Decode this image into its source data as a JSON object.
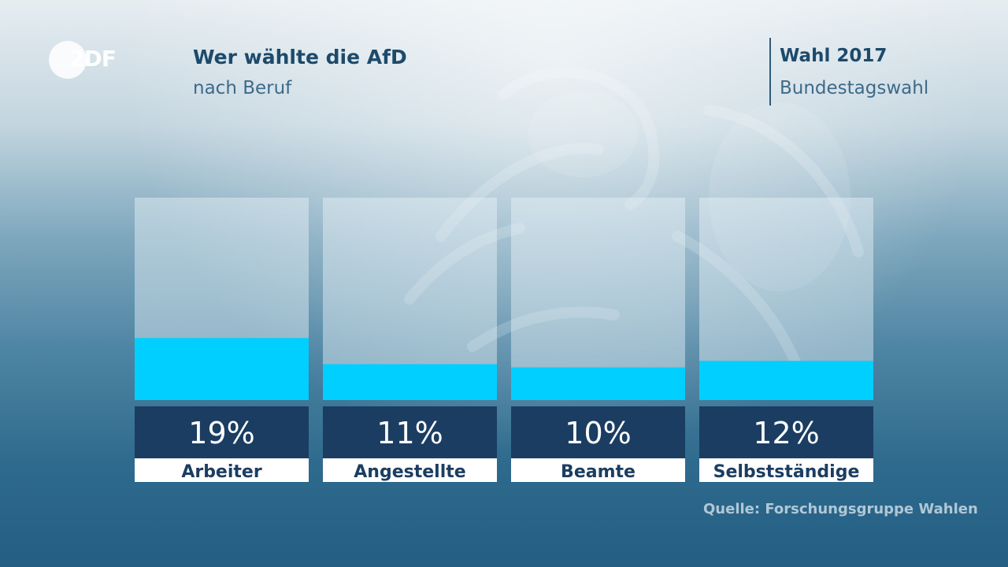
{
  "brand": {
    "logo_text": "2DF"
  },
  "header": {
    "title": "Wer wählte die AfD",
    "subtitle": "nach Beruf"
  },
  "election": {
    "title": "Wahl 2017",
    "subtitle": "Bundestagswahl"
  },
  "chart_data": {
    "type": "bar",
    "title": "Wer wählte die AfD",
    "subtitle": "nach Beruf",
    "categories": [
      "Arbeiter",
      "Angestellte",
      "Beamte",
      "Selbstständige"
    ],
    "values": [
      19,
      11,
      10,
      12
    ],
    "value_labels": [
      "19%",
      "11%",
      "10%",
      "12%"
    ],
    "unit": "%",
    "ylim": [
      0,
      62
    ],
    "grid": false,
    "legend": "none",
    "colors": {
      "fill": "#00cfff",
      "track": "#dbe8ef",
      "value_box": "#1b3d62",
      "label_box": "#ffffff"
    }
  },
  "source": "Quelle: Forschungsgruppe Wahlen"
}
